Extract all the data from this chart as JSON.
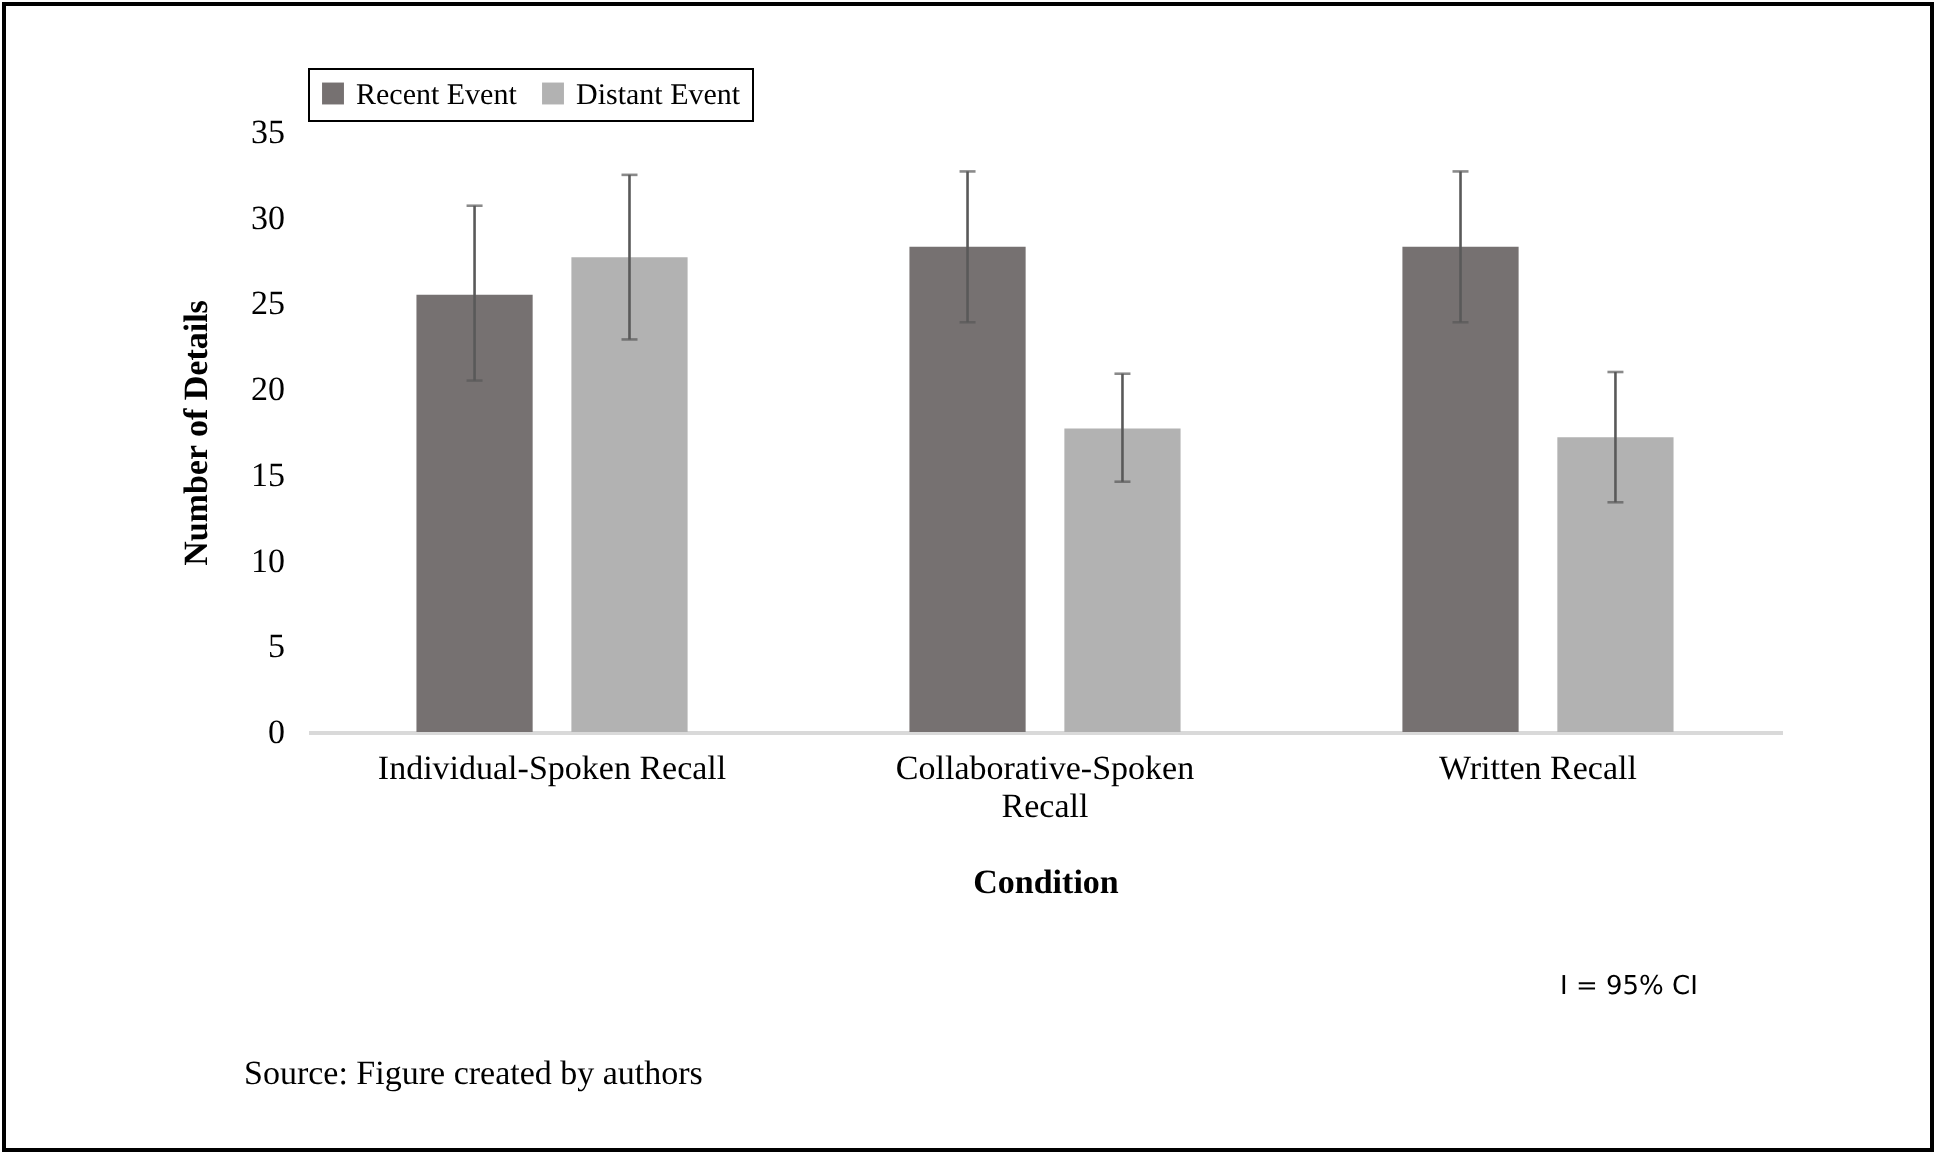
{
  "chart_data": {
    "type": "bar",
    "xlabel": "Condition",
    "ylabel": "Number of Details",
    "categories": [
      "Individual-Spoken Recall",
      "Collaborative-Spoken Recall",
      "Written Recall"
    ],
    "series": [
      {
        "name": "Recent Event",
        "color": "#767171",
        "values": [
          25.5,
          28.3,
          28.3
        ],
        "errors": [
          [
            20.5,
            30.7
          ],
          [
            23.9,
            32.7
          ],
          [
            23.9,
            32.7
          ]
        ]
      },
      {
        "name": "Distant Event",
        "color": "#b2b2b2",
        "values": [
          27.7,
          17.7,
          17.2
        ],
        "errors": [
          [
            22.9,
            32.5
          ],
          [
            14.6,
            20.9
          ],
          [
            13.4,
            21.0
          ]
        ]
      }
    ],
    "ylim": [
      0,
      35
    ],
    "yticks": [
      0,
      5,
      10,
      15,
      20,
      25,
      30,
      35
    ],
    "grid": false,
    "legend": "top",
    "annotations": [
      "I = 95% CI",
      "Source: Figure created by authors"
    ]
  }
}
